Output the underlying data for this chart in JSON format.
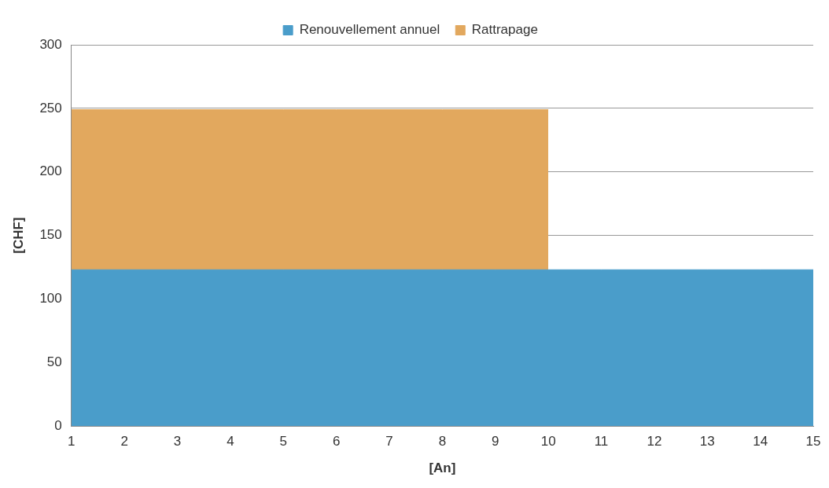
{
  "chart_data": {
    "type": "area",
    "stacked": true,
    "xlabel": "[An]",
    "ylabel": "[CHF]",
    "x": [
      1,
      2,
      3,
      4,
      5,
      6,
      7,
      8,
      9,
      10,
      11,
      12,
      13,
      14,
      15
    ],
    "series": [
      {
        "name": "Renouvellement annuel",
        "color": "#4a9dca",
        "values": [
          123,
          123,
          123,
          123,
          123,
          123,
          123,
          123,
          123,
          123,
          123,
          123,
          123,
          123,
          123
        ]
      },
      {
        "name": "Rattrapage",
        "color": "#e2a85e",
        "values": [
          126,
          126,
          126,
          126,
          126,
          126,
          126,
          126,
          126,
          126,
          null,
          null,
          null,
          null,
          null
        ]
      }
    ],
    "xlim": [
      1,
      15
    ],
    "xticks": [
      1,
      2,
      3,
      4,
      5,
      6,
      7,
      8,
      9,
      10,
      11,
      12,
      13,
      14,
      15
    ],
    "ylim": [
      0,
      300
    ],
    "yticks": [
      0,
      50,
      100,
      150,
      200,
      250,
      300
    ],
    "grid": "y",
    "legend": "top"
  }
}
